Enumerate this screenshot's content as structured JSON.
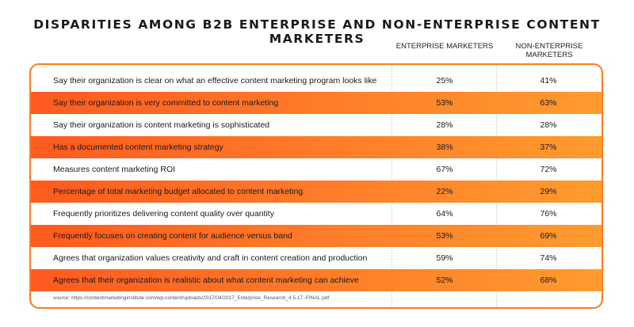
{
  "chart_data": {
    "type": "table",
    "title": "DISPARITIES AMONG B2B ENTERPRISE AND NON-ENTERPRISE CONTENT MARKETERS",
    "columns": [
      "ENTERPRISE MARKETERS",
      "NON-ENTERPRISE MARKETERS"
    ],
    "rows": [
      {
        "label": "Say their organization is clear on what an effective content marketing program looks like",
        "enterprise": "25%",
        "non_enterprise": "41%",
        "shaded": false
      },
      {
        "label": "Say their organization is very committed to content marketing",
        "enterprise": "53%",
        "non_enterprise": "63%",
        "shaded": true
      },
      {
        "label": "Say their organization is content marketing is sophisticated",
        "enterprise": "28%",
        "non_enterprise": "28%",
        "shaded": false
      },
      {
        "label": "Has a documented content marketing strategy",
        "enterprise": "38%",
        "non_enterprise": "37%",
        "shaded": true
      },
      {
        "label": "Measures content marketing ROI",
        "enterprise": "67%",
        "non_enterprise": "72%",
        "shaded": false
      },
      {
        "label": "Percentage of total marketing budget allocated to content marketing",
        "enterprise": "22%",
        "non_enterprise": "29%",
        "shaded": true
      },
      {
        "label": "Frequently prioritizes delivering content quality over quantity",
        "enterprise": "64%",
        "non_enterprise": "76%",
        "shaded": false
      },
      {
        "label": "Frequently focuses on creating content for audience versus band",
        "enterprise": "53%",
        "non_enterprise": "69%",
        "shaded": true
      },
      {
        "label": "Agrees that organization values creativity and craft in content creation and production",
        "enterprise": "59%",
        "non_enterprise": "74%",
        "shaded": false
      },
      {
        "label": "Agrees that their organization is realistic about what content marketing can achieve",
        "enterprise": "52%",
        "non_enterprise": "68%",
        "shaded": true
      }
    ],
    "source": "source: https://contentmarketinginstitute.com/wp-content/uploads/2017/04/2017_Enterprise_Research_4.5.17.-FINAL.pdf"
  },
  "colors": {
    "accent": "#ff7a20",
    "row_shade_start": "#ff5a1f",
    "row_shade_end": "#ff9b2e"
  }
}
